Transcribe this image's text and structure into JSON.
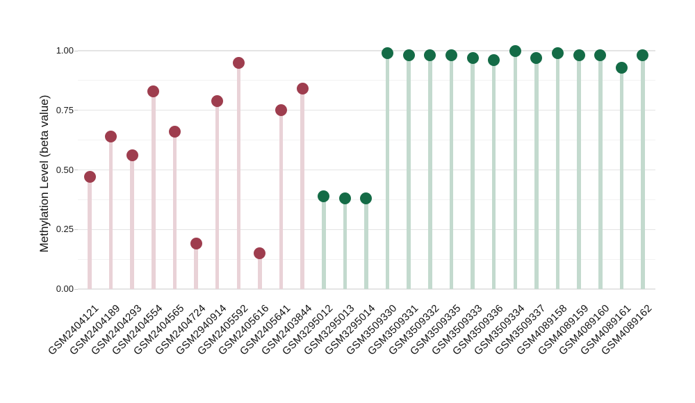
{
  "chart_data": {
    "type": "lollipop",
    "title": "",
    "xlabel": "",
    "ylabel": "Methylation Level (beta value)",
    "ylim": [
      0,
      1.0
    ],
    "yticks": [
      {
        "value": 0.0,
        "label": "0.00"
      },
      {
        "value": 0.25,
        "label": "0.25"
      },
      {
        "value": 0.5,
        "label": "0.50"
      },
      {
        "value": 0.75,
        "label": "0.75"
      },
      {
        "value": 1.0,
        "label": "1.00"
      }
    ],
    "minor_ticks": [
      0.125,
      0.375,
      0.625,
      0.875
    ],
    "grid": "horizontal major+minor",
    "legend": "none",
    "x_label_rotation_deg": 45,
    "series": [
      {
        "name": "red-group",
        "dot_color": "#9e3d4e",
        "stem_color": "#e9d2d7",
        "points": [
          {
            "x": "GSM2404121",
            "y": 0.47
          },
          {
            "x": "GSM2404189",
            "y": 0.64
          },
          {
            "x": "GSM2404293",
            "y": 0.56
          },
          {
            "x": "GSM2404554",
            "y": 0.83
          },
          {
            "x": "GSM2404565",
            "y": 0.66
          },
          {
            "x": "GSM2404724",
            "y": 0.19
          },
          {
            "x": "GSM2940914",
            "y": 0.79
          },
          {
            "x": "GSM2405592",
            "y": 0.95
          },
          {
            "x": "GSM2405616",
            "y": 0.15
          },
          {
            "x": "GSM2405641",
            "y": 0.75
          },
          {
            "x": "GSM2403844",
            "y": 0.84
          }
        ]
      },
      {
        "name": "green-group",
        "dot_color": "#146b46",
        "stem_color": "#c3dace",
        "points": [
          {
            "x": "GSM3295012",
            "y": 0.39
          },
          {
            "x": "GSM3295013",
            "y": 0.38
          },
          {
            "x": "GSM3295014",
            "y": 0.38
          },
          {
            "x": "GSM3509330",
            "y": 0.99
          },
          {
            "x": "GSM3509331",
            "y": 0.98
          },
          {
            "x": "GSM3509332",
            "y": 0.98
          },
          {
            "x": "GSM3509335",
            "y": 0.98
          },
          {
            "x": "GSM3509333",
            "y": 0.97
          },
          {
            "x": "GSM3509336",
            "y": 0.96
          },
          {
            "x": "GSM3509334",
            "y": 1.0
          },
          {
            "x": "GSM3509337",
            "y": 0.97
          },
          {
            "x": "GSM4089158",
            "y": 0.99
          },
          {
            "x": "GSM4089159",
            "y": 0.98
          },
          {
            "x": "GSM4089160",
            "y": 0.98
          },
          {
            "x": "GSM4089161",
            "y": 0.93
          },
          {
            "x": "GSM4089162",
            "y": 0.98
          }
        ]
      }
    ]
  },
  "colors": {
    "background": "#ffffff",
    "grid_major": "#e4e4e4",
    "grid_minor": "#f2f2f2",
    "axis_text": "#1a1a1a",
    "red_dot": "#9e3d4e",
    "red_stem": "#e9d2d7",
    "green_dot": "#146b46",
    "green_stem": "#c3dace"
  }
}
